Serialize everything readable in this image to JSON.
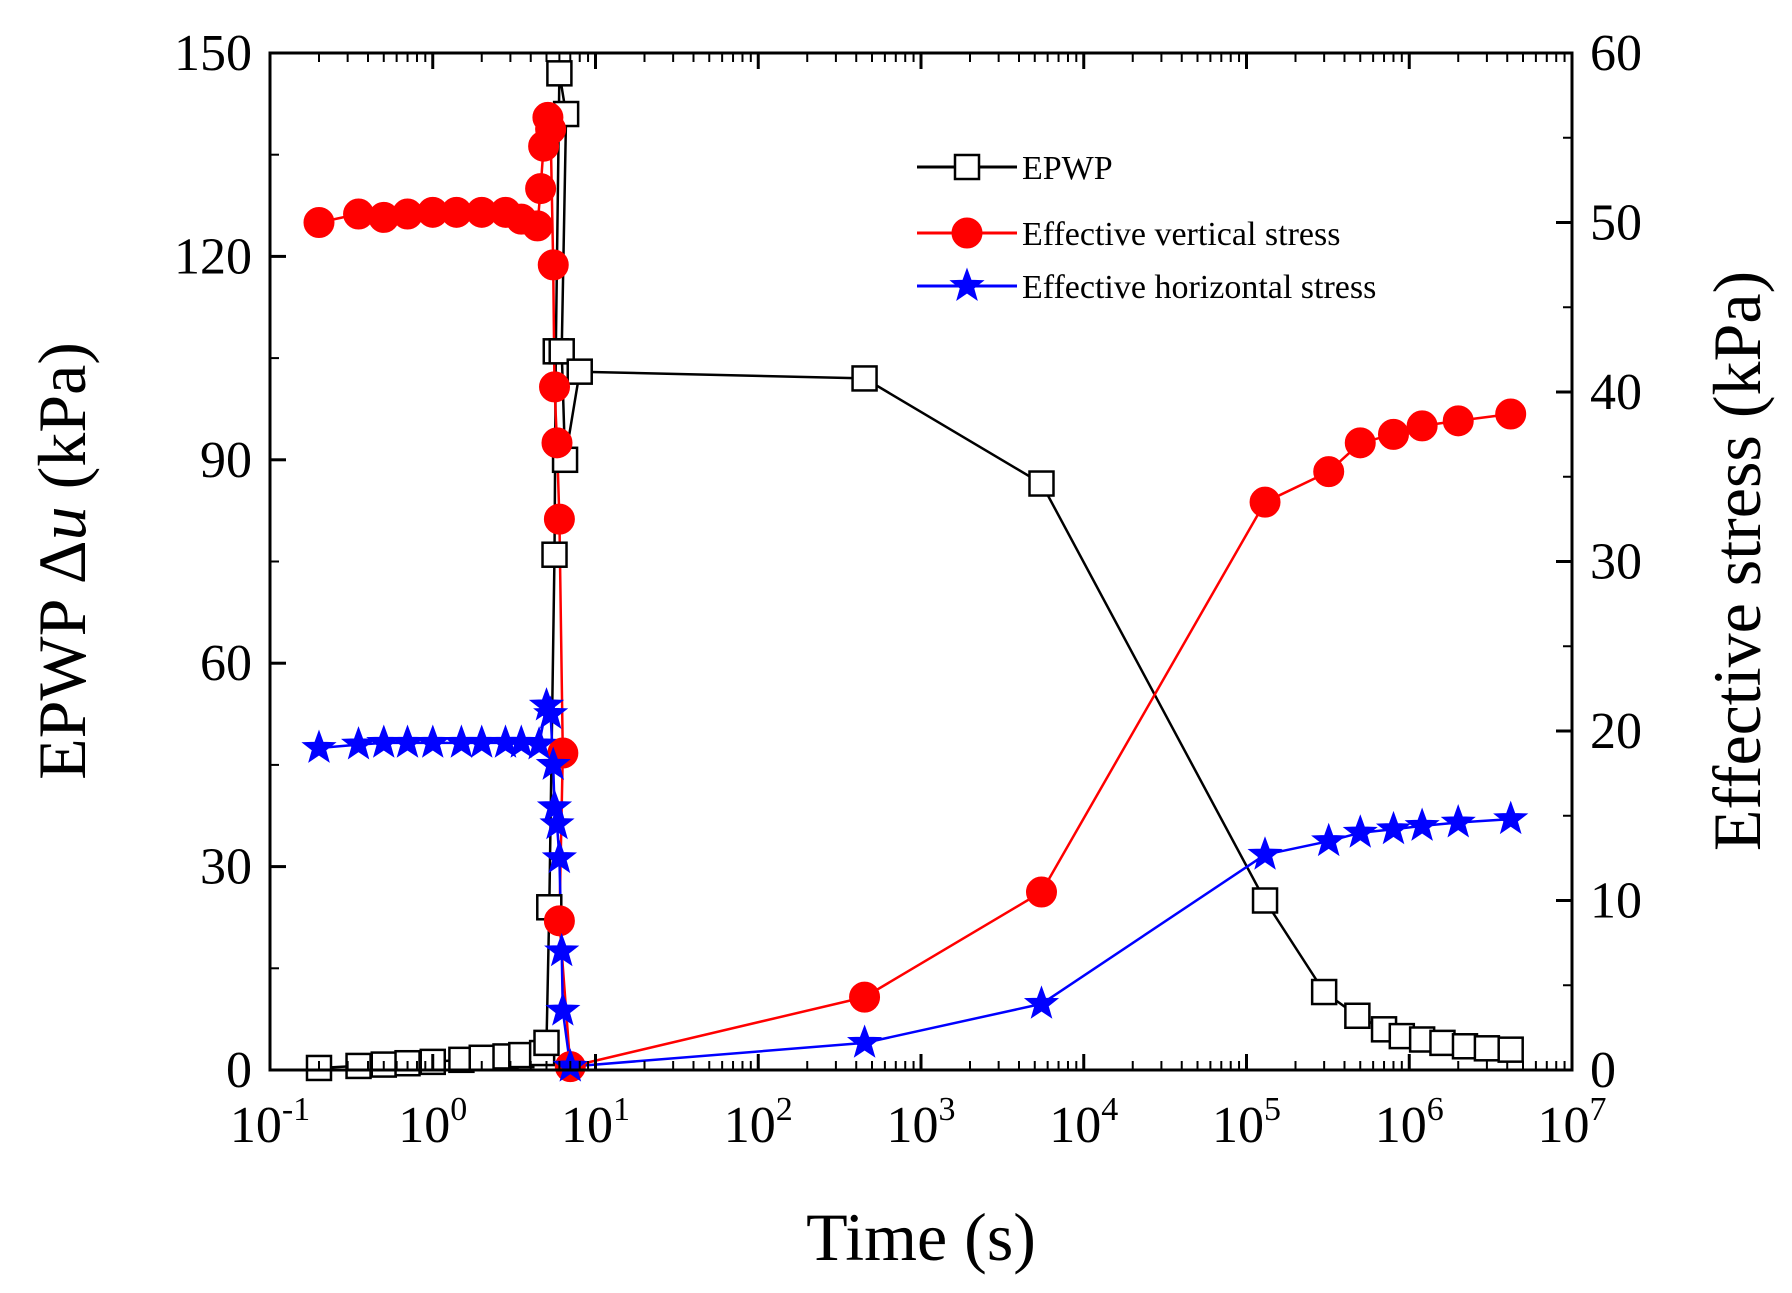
{
  "chart_data": {
    "type": "line",
    "xscale": "log",
    "xlabel": "Time (s)",
    "ylabel_left": {
      "prefix": "EPWP Δ",
      "var": "u",
      "suffix": " (kPa)"
    },
    "ylabel_right": "Effective stress (kPa)",
    "xlim": [
      0.1,
      10000000
    ],
    "ylim_left": [
      0,
      150
    ],
    "ylim_right": [
      0,
      60
    ],
    "x_ticks": [
      {
        "value": 0.1,
        "base": "10",
        "exp": "-1"
      },
      {
        "value": 1,
        "base": "10",
        "exp": "0"
      },
      {
        "value": 10,
        "base": "10",
        "exp": "1"
      },
      {
        "value": 100,
        "base": "10",
        "exp": "2"
      },
      {
        "value": 1000,
        "base": "10",
        "exp": "3"
      },
      {
        "value": 10000,
        "base": "10",
        "exp": "4"
      },
      {
        "value": 100000,
        "base": "10",
        "exp": "5"
      },
      {
        "value": 1000000,
        "base": "10",
        "exp": "6"
      },
      {
        "value": 10000000,
        "base": "10",
        "exp": "7"
      }
    ],
    "y_ticks_left": [
      "0",
      "30",
      "60",
      "90",
      "120",
      "150"
    ],
    "y_ticks_right": [
      "0",
      "10",
      "20",
      "30",
      "40",
      "50",
      "60"
    ],
    "series": [
      {
        "name": "EPWP",
        "axis": "left",
        "color": "#000000",
        "marker": "open-square",
        "points": [
          [
            0.2,
            0.3
          ],
          [
            0.35,
            0.6
          ],
          [
            0.5,
            0.8
          ],
          [
            0.7,
            1
          ],
          [
            1,
            1.2
          ],
          [
            1.5,
            1.5
          ],
          [
            2,
            1.8
          ],
          [
            2.8,
            2
          ],
          [
            3.5,
            2.2
          ],
          [
            4.7,
            2.5
          ],
          [
            5.0,
            4
          ],
          [
            5.2,
            24
          ],
          [
            5.6,
            76
          ],
          [
            5.7,
            106
          ],
          [
            6.0,
            147
          ],
          [
            6.6,
            141
          ],
          [
            6.2,
            106
          ],
          [
            6.5,
            90
          ],
          [
            8.0,
            103
          ],
          [
            450,
            102
          ],
          [
            5500,
            86.5
          ],
          [
            130000,
            25
          ],
          [
            300000,
            11.5
          ],
          [
            480000,
            8
          ],
          [
            700000,
            6
          ],
          [
            900000,
            5
          ],
          [
            1200000,
            4.5
          ],
          [
            1600000,
            4
          ],
          [
            2200000,
            3.5
          ],
          [
            3000000,
            3.2
          ],
          [
            4200000,
            3
          ]
        ]
      },
      {
        "name": "Effective vertical stress",
        "axis": "right",
        "color": "#ff0000",
        "marker": "filled-circle",
        "points": [
          [
            0.2,
            50
          ],
          [
            0.35,
            50.5
          ],
          [
            0.5,
            50.3
          ],
          [
            0.7,
            50.5
          ],
          [
            1,
            50.6
          ],
          [
            1.4,
            50.6
          ],
          [
            2,
            50.6
          ],
          [
            2.8,
            50.6
          ],
          [
            3.5,
            50.2
          ],
          [
            4.4,
            49.8
          ],
          [
            4.6,
            52
          ],
          [
            4.8,
            54.5
          ],
          [
            5.1,
            56.2
          ],
          [
            5.3,
            55.5
          ],
          [
            5.5,
            47.5
          ],
          [
            5.6,
            40.3
          ],
          [
            5.8,
            37
          ],
          [
            6.0,
            32.5
          ],
          [
            6.3,
            18.7
          ],
          [
            6.0,
            8.8
          ],
          [
            7.0,
            0.2
          ],
          [
            450,
            4.3
          ],
          [
            5500,
            10.5
          ],
          [
            130000,
            33.5
          ],
          [
            320000,
            35.3
          ],
          [
            500000,
            37
          ],
          [
            800000,
            37.5
          ],
          [
            1200000,
            38
          ],
          [
            2000000,
            38.3
          ],
          [
            4200000,
            38.7
          ]
        ]
      },
      {
        "name": "Effective horizontal stress",
        "axis": "right",
        "color": "#0000ff",
        "marker": "filled-star",
        "points": [
          [
            0.2,
            19
          ],
          [
            0.35,
            19.2
          ],
          [
            0.5,
            19.3
          ],
          [
            0.7,
            19.3
          ],
          [
            1,
            19.3
          ],
          [
            1.5,
            19.3
          ],
          [
            2,
            19.3
          ],
          [
            2.8,
            19.3
          ],
          [
            3.5,
            19.3
          ],
          [
            4.5,
            19.2
          ],
          [
            5.0,
            21.5
          ],
          [
            5.3,
            21
          ],
          [
            5.5,
            18
          ],
          [
            5.6,
            15.5
          ],
          [
            5.8,
            14.5
          ],
          [
            6.0,
            12.5
          ],
          [
            6.2,
            7
          ],
          [
            6.3,
            3.5
          ],
          [
            7.0,
            0.2
          ],
          [
            450,
            1.6
          ],
          [
            5500,
            3.9
          ],
          [
            130000,
            12.7
          ],
          [
            320000,
            13.5
          ],
          [
            500000,
            14
          ],
          [
            800000,
            14.2
          ],
          [
            1200000,
            14.4
          ],
          [
            2000000,
            14.6
          ],
          [
            4200000,
            14.8
          ]
        ]
      }
    ],
    "legend_position": "top-right"
  }
}
